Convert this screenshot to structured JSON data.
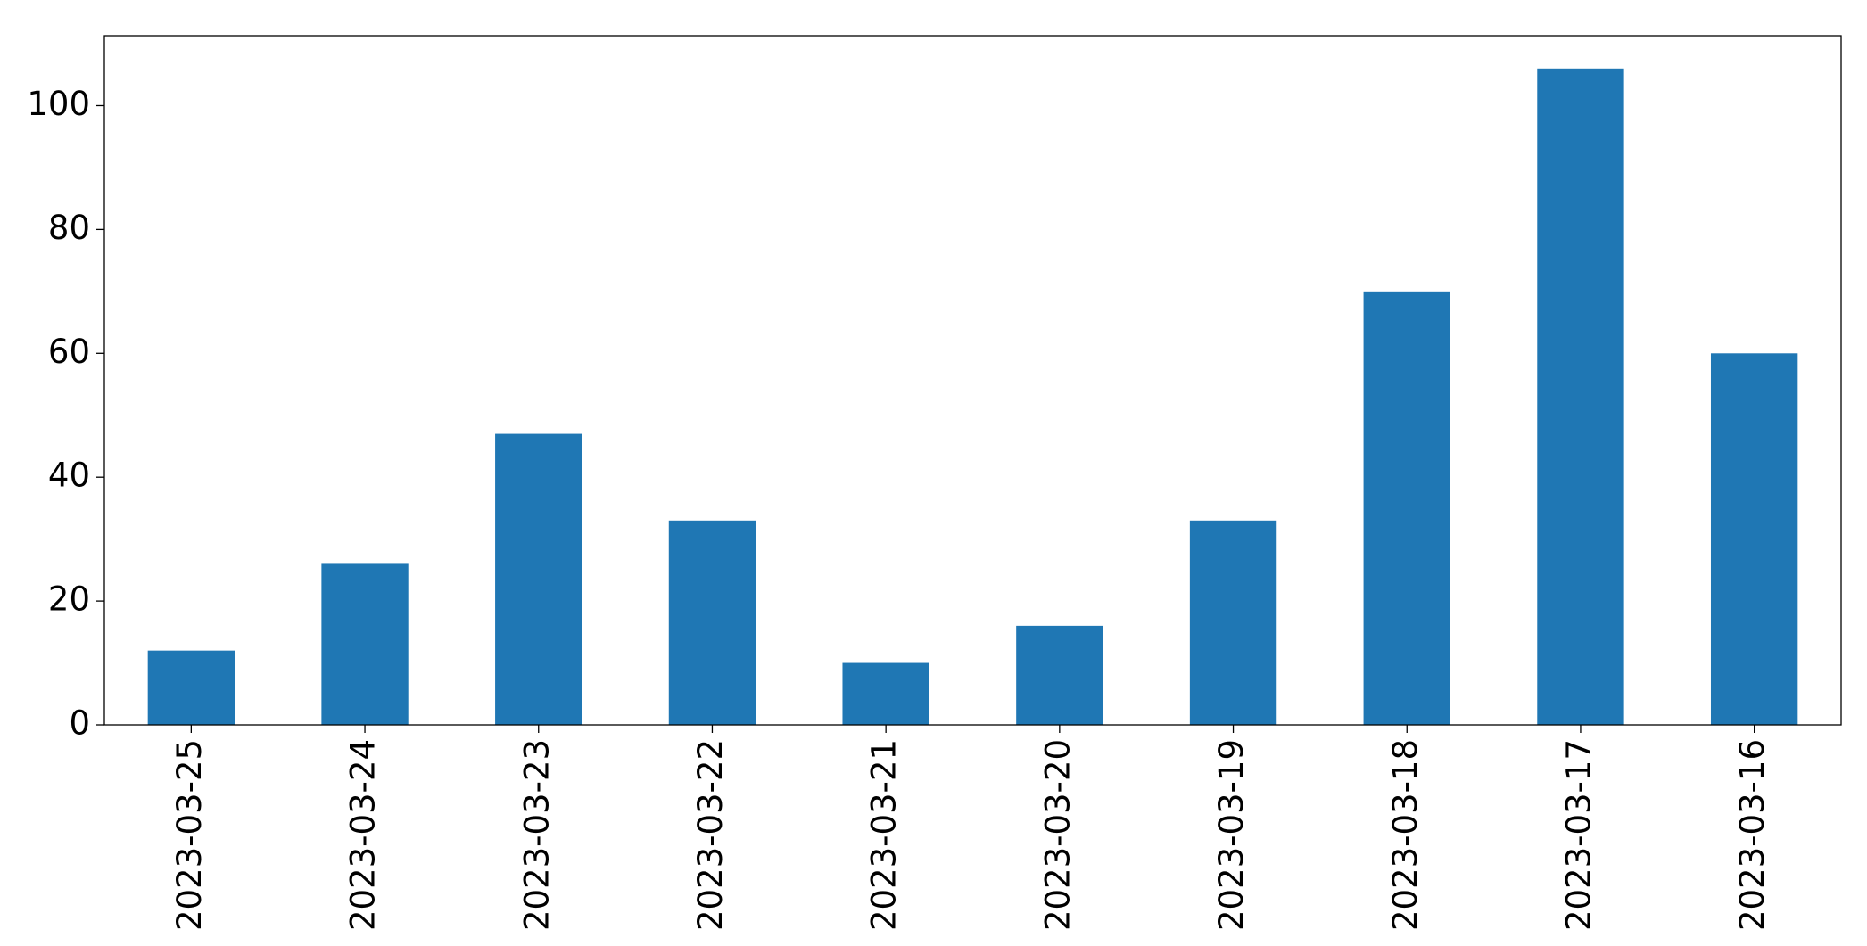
{
  "chart_data": {
    "type": "bar",
    "categories": [
      "2023-03-25",
      "2023-03-24",
      "2023-03-23",
      "2023-03-22",
      "2023-03-21",
      "2023-03-20",
      "2023-03-19",
      "2023-03-18",
      "2023-03-17",
      "2023-03-16"
    ],
    "values": [
      12,
      26,
      47,
      33,
      10,
      16,
      33,
      70,
      106,
      60
    ],
    "color": "#1f77b4",
    "ylim": [
      0,
      111.3
    ],
    "yticks": [
      0,
      20,
      40,
      60,
      80,
      100
    ],
    "grid": false
  }
}
